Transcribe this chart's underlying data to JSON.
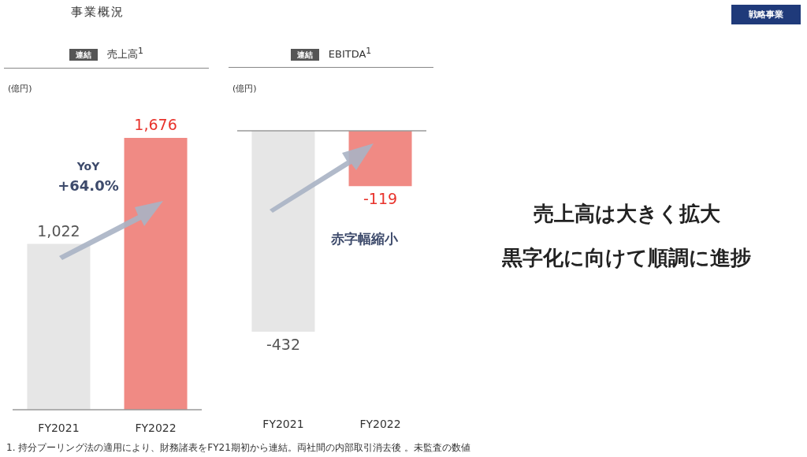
{
  "chart_data": [
    {
      "type": "bar",
      "title": "売上高$^{1}$",
      "subtitle": "連結",
      "ylabel": "(億円)",
      "categories": [
        "FY2021",
        "FY2022"
      ],
      "values": [
        1022,
        1676
      ],
      "value_labels": [
        "1,022",
        "1,676"
      ],
      "colors": [
        "#e6e6e6",
        "#f08a84"
      ],
      "annotations": [
        "YoY",
        "+64.0%"
      ]
    },
    {
      "type": "bar",
      "title": "EBITDA$^{1}$",
      "subtitle": "連結",
      "ylabel": "(億円)",
      "categories": [
        "FY2021",
        "FY2022"
      ],
      "values": [
        -432,
        -119
      ],
      "value_labels": [
        "-432",
        "-119"
      ],
      "colors": [
        "#e6e6e6",
        "#f08a84"
      ],
      "annotations": [
        "赤字幅縮小"
      ]
    },
    {
      "type": "other",
      "annotations": [
        "事業概況",
        "戦略事業",
        "売上高は大きく拡大",
        "黒字化に向けて順調に進捗",
        "1. 持分プーリング法の適用により、財務諸表をFY21期初から連結。両社間の内部取引消去後 。未監査の数値"
      ]
    }
  ]
}
